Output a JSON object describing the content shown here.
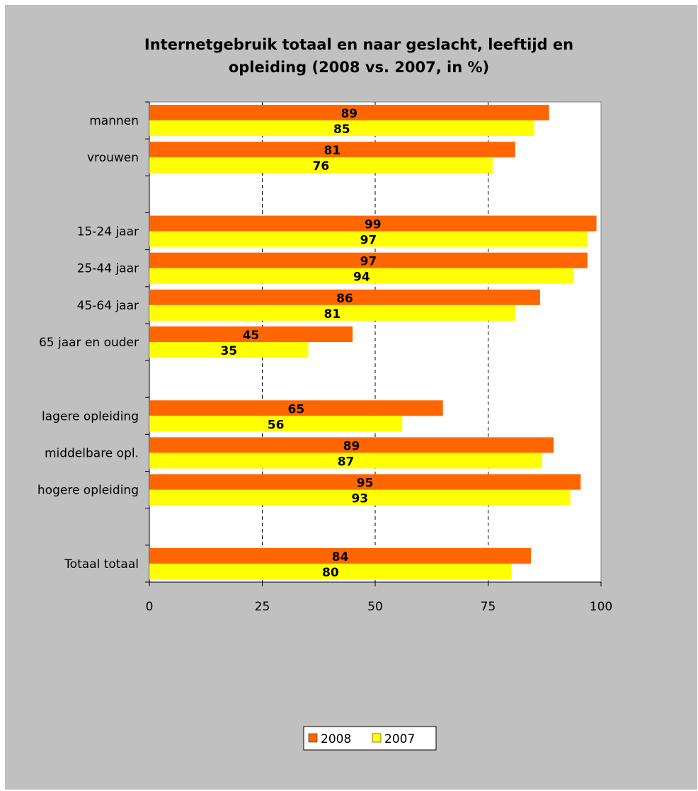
{
  "chart_data": {
    "type": "bar",
    "orientation": "horizontal",
    "title": "Internetgebruik totaal en naar geslacht, leeftijd en opleiding (2008 vs. 2007, in %)",
    "title_lines": [
      "Internetgebruik totaal en naar geslacht, leeftijd en",
      "opleiding (2008 vs. 2007, in %)"
    ],
    "categories": [
      "mannen",
      "vrouwen",
      "",
      "15-24 jaar",
      "25-44 jaar",
      "45-64 jaar",
      "65 jaar en ouder",
      "",
      "lagere opleiding",
      "middelbare opl.",
      "hogere opleiding",
      "",
      "Totaal totaal"
    ],
    "series": [
      {
        "name": "2008",
        "color": "#ff6600",
        "values": [
          89,
          81,
          null,
          99,
          97,
          86,
          45,
          null,
          65,
          89,
          95,
          null,
          84
        ]
      },
      {
        "name": "2007",
        "color": "#ffff00",
        "values": [
          85,
          76,
          null,
          97,
          94,
          81,
          35,
          null,
          56,
          87,
          93,
          null,
          80
        ]
      }
    ],
    "series_bar_lengths": [
      [
        88.5,
        81.0,
        null,
        99.0,
        97.0,
        86.5,
        45.0,
        null,
        65.0,
        89.5,
        95.5,
        null,
        84.5
      ],
      [
        85.2,
        76.0,
        null,
        97.0,
        94.0,
        81.0,
        35.2,
        null,
        56.0,
        87.0,
        93.2,
        null,
        80.2
      ]
    ],
    "xlim": [
      0,
      100
    ],
    "xticks": [
      0,
      25,
      50,
      75,
      100
    ],
    "xgrid": "dashed",
    "legend": "bottom",
    "plot_background": "#ffffff",
    "chart_background": "#c0c0c0"
  }
}
